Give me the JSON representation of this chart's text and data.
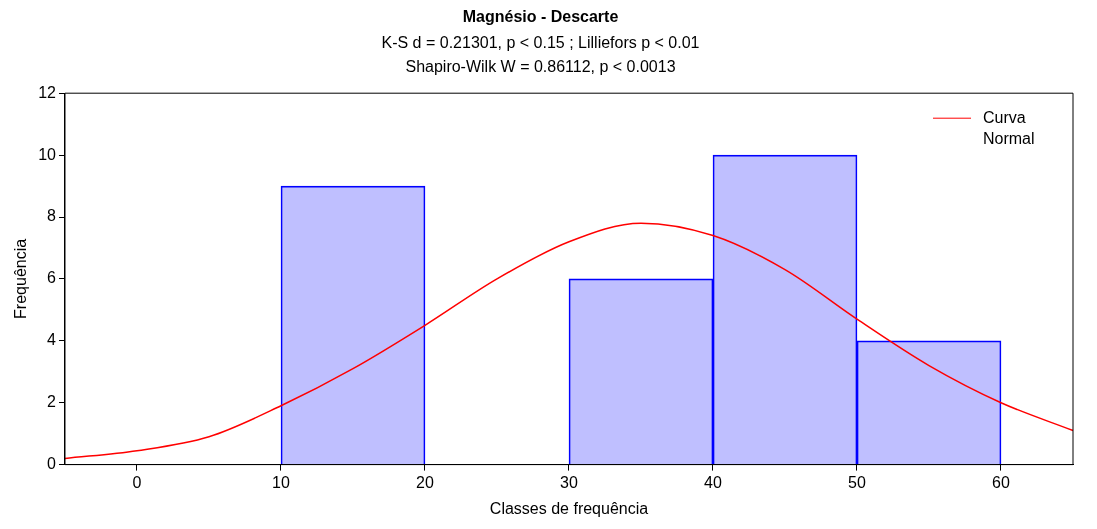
{
  "chart_data": {
    "type": "histogram",
    "title": "Magnésio - Descarte",
    "subtitle": "K-S d = 0.21301, p < 0.15 ; Lilliefors p < 0.01\nShapiro-Wilk W = 0.86112, p < 0.0013",
    "xlabel": "Classes de frequência",
    "ylabel": "Frequência",
    "bins": [
      10,
      20,
      30,
      40,
      50,
      60
    ],
    "values": [
      9,
      0,
      6,
      10,
      4
    ],
    "color": "#0000ff",
    "series": [
      {
        "type": "line",
        "name": "Curva Normal",
        "color": "#ff0000",
        "x": [
          -5,
          0,
          5,
          10,
          15,
          20,
          25,
          30,
          35,
          40,
          45,
          50,
          55,
          60,
          65
        ],
        "values": [
          0.2,
          0.45,
          0.9,
          1.9,
          3.1,
          4.5,
          6.0,
          7.2,
          7.8,
          7.4,
          6.3,
          4.7,
          3.2,
          2.0,
          1.1
        ]
      }
    ],
    "xlim": [
      -5,
      65
    ],
    "xticks": [
      0,
      10,
      20,
      30,
      40,
      50,
      60
    ],
    "ylim": [
      0,
      12
    ],
    "yticks": [
      0,
      2,
      4,
      6,
      8,
      10,
      12
    ],
    "grid": false,
    "legend": "top right",
    "marker": "none"
  }
}
